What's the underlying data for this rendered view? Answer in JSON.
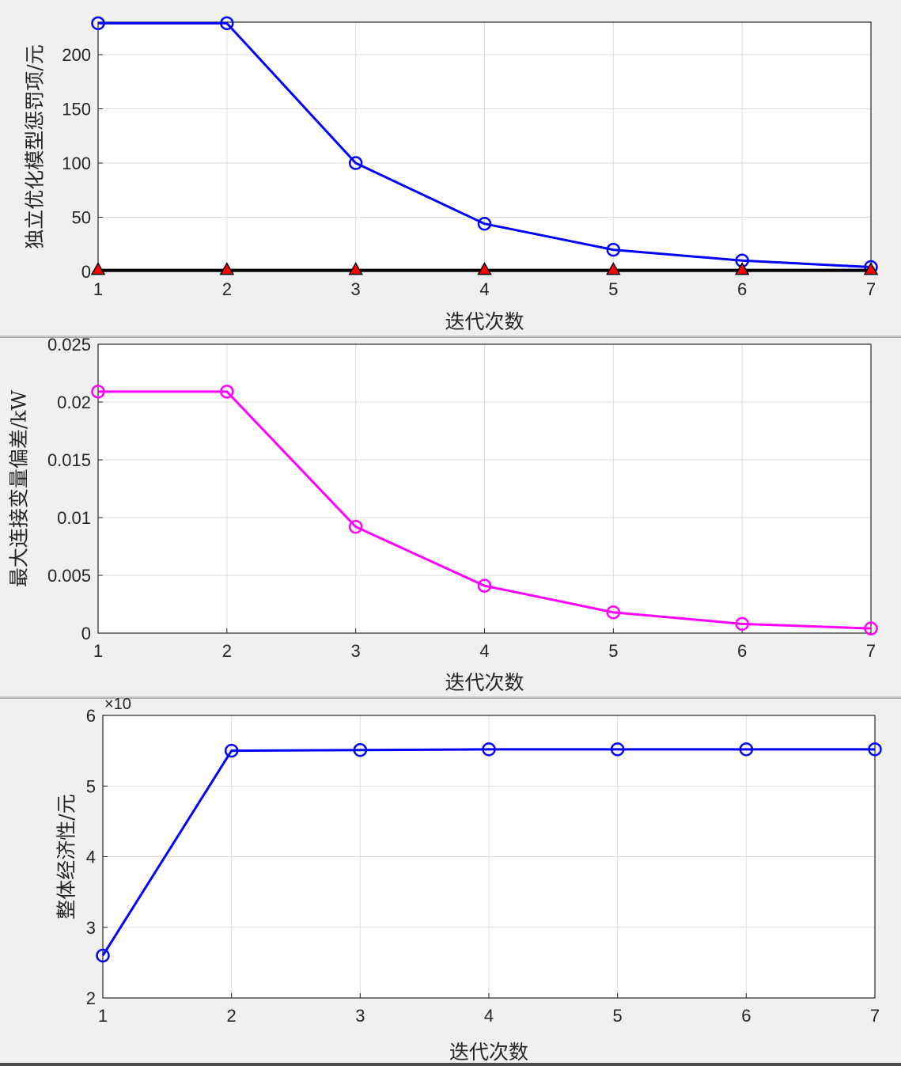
{
  "chart_data": [
    {
      "type": "line",
      "xlabel": "迭代次数",
      "ylabel": "独立优化模型惩罚项/元",
      "x": [
        1,
        2,
        3,
        4,
        5,
        6,
        7
      ],
      "xlim": [
        1,
        7
      ],
      "ylim": [
        0,
        230
      ],
      "xticks": [
        "1",
        "2",
        "3",
        "4",
        "5",
        "6",
        "7"
      ],
      "yticks": [
        0,
        50,
        100,
        150,
        200
      ],
      "grid": true,
      "series": [
        {
          "color": "#0000ff",
          "marker": "circle",
          "values": [
            229,
            229,
            100,
            44,
            20,
            10,
            4
          ]
        },
        {
          "color": "#000000",
          "marker": "triangle",
          "marker_color": "#ff0000",
          "values": [
            1,
            1,
            1,
            1,
            1,
            1,
            1
          ]
        }
      ]
    },
    {
      "type": "line",
      "xlabel": "迭代次数",
      "ylabel": "最大连接变量偏差/kW",
      "x": [
        1,
        2,
        3,
        4,
        5,
        6,
        7
      ],
      "xlim": [
        1,
        7
      ],
      "ylim": [
        0,
        0.025
      ],
      "xticks": [
        "1",
        "2",
        "3",
        "4",
        "5",
        "6",
        "7"
      ],
      "yticks": [
        "0",
        "0.005",
        "0.01",
        "0.015",
        "0.02",
        "0.025"
      ],
      "grid": true,
      "series": [
        {
          "color": "#ff00ff",
          "marker": "circle",
          "values": [
            0.0209,
            0.0209,
            0.0092,
            0.0041,
            0.0018,
            0.0008,
            0.0004
          ]
        }
      ]
    },
    {
      "type": "line",
      "xlabel": "迭代次数",
      "ylabel": "整体经济性/元",
      "multiplier_label": "×10",
      "x": [
        1,
        2,
        3,
        4,
        5,
        6,
        7
      ],
      "xlim": [
        1,
        7
      ],
      "ylim": [
        2,
        6
      ],
      "xticks": [
        "1",
        "2",
        "3",
        "4",
        "5",
        "6",
        "7"
      ],
      "yticks": [
        "2",
        "3",
        "4",
        "5",
        "6"
      ],
      "grid": true,
      "series": [
        {
          "color": "#0000ff",
          "marker": "circle",
          "values": [
            2.6,
            5.5,
            5.51,
            5.52,
            5.52,
            5.52,
            5.52
          ]
        }
      ]
    }
  ]
}
